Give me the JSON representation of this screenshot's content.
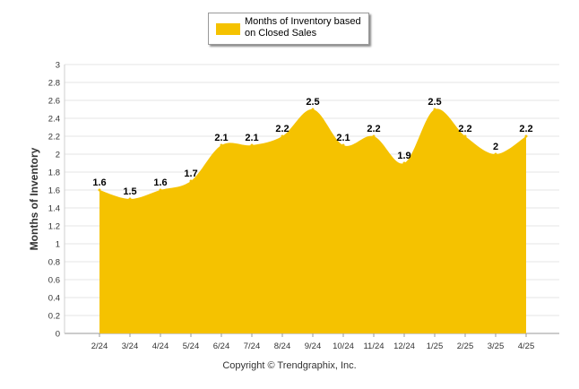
{
  "chart_data": {
    "type": "area",
    "categories": [
      "2/24",
      "3/24",
      "4/24",
      "5/24",
      "6/24",
      "7/24",
      "8/24",
      "9/24",
      "10/24",
      "11/24",
      "12/24",
      "1/25",
      "2/25",
      "3/25",
      "4/25"
    ],
    "series": [
      {
        "name": "Months of Inventory based on Closed Sales",
        "values": [
          1.6,
          1.5,
          1.6,
          1.7,
          2.1,
          2.1,
          2.2,
          2.5,
          2.1,
          2.2,
          1.9,
          2.5,
          2.2,
          2.0,
          2.2
        ]
      }
    ],
    "data_labels": [
      "1.6",
      "1.5",
      "1.6",
      "1.7",
      "2.1",
      "2.1",
      "2.2",
      "2.5",
      "2.1",
      "2.2",
      "1.9",
      "2.5",
      "2.2",
      "2",
      "2.2"
    ],
    "ylabel": "Months of Inventory",
    "ylim": [
      0,
      3
    ],
    "yticks": [
      "0",
      "0.2",
      "0.4",
      "0.6",
      "0.8",
      "1",
      "1.2",
      "1.4",
      "1.6",
      "1.8",
      "2",
      "2.2",
      "2.4",
      "2.6",
      "2.8",
      "3"
    ],
    "grid": true,
    "legend_position": "top-center",
    "area_color": "#F5C200",
    "footer": "Copyright © Trendgraphix, Inc."
  }
}
